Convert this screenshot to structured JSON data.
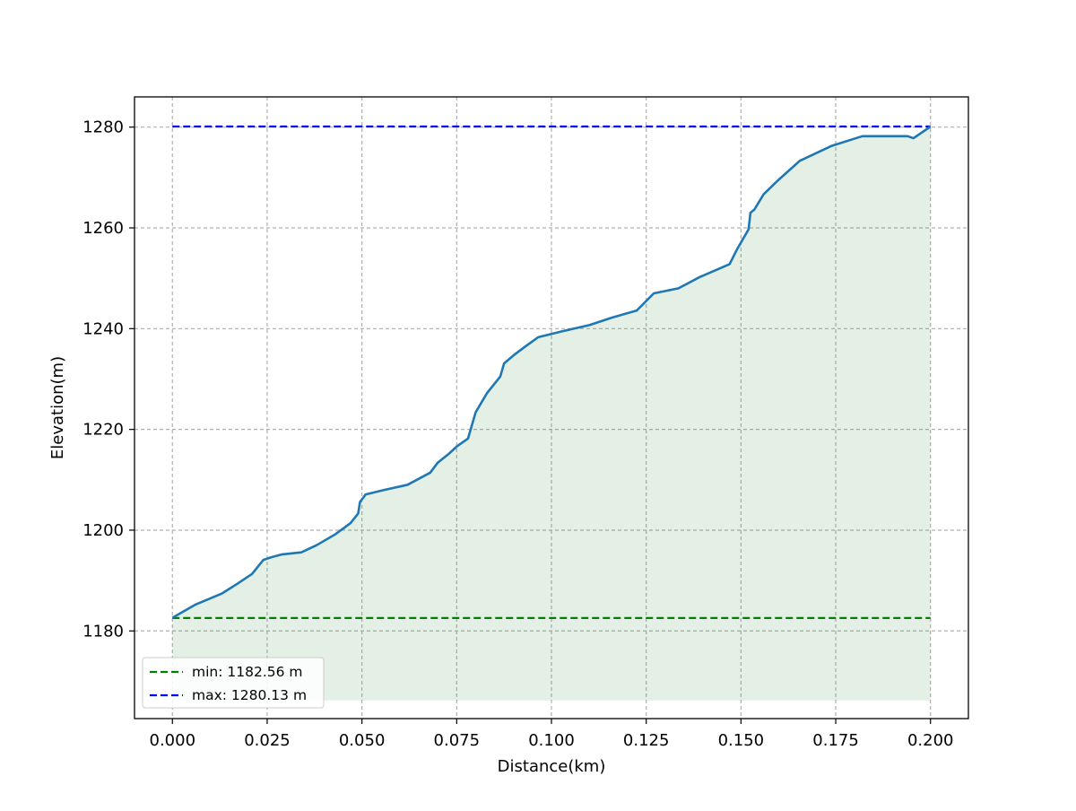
{
  "chart_data": {
    "type": "area",
    "title": "",
    "xlabel": "Distance(km)",
    "ylabel": "Elevation(m)",
    "xlim": [
      -0.01,
      0.21
    ],
    "ylim": [
      1162.6,
      1286.0
    ],
    "xticks": [
      0.0,
      0.025,
      0.05,
      0.075,
      0.1,
      0.125,
      0.15,
      0.175,
      0.2
    ],
    "xtick_labels": [
      "0.000",
      "0.025",
      "0.050",
      "0.075",
      "0.100",
      "0.125",
      "0.150",
      "0.175",
      "0.200"
    ],
    "yticks": [
      1180,
      1200,
      1220,
      1240,
      1260,
      1280
    ],
    "ytick_labels": [
      "1180",
      "1200",
      "1220",
      "1240",
      "1260",
      "1280"
    ],
    "grid": true,
    "fill_baseline": 1166.2,
    "legend_position": "lower-left",
    "series": [
      {
        "kind": "profile",
        "color": "#1f77b4",
        "fill_color": "#2e8b3a",
        "x": [
          0.0,
          0.006,
          0.013,
          0.017,
          0.021,
          0.024,
          0.026,
          0.029,
          0.034,
          0.038,
          0.043,
          0.047,
          0.049,
          0.0495,
          0.051,
          0.056,
          0.062,
          0.068,
          0.07,
          0.073,
          0.075,
          0.078,
          0.08,
          0.083,
          0.0865,
          0.0875,
          0.09,
          0.093,
          0.0965,
          0.103,
          0.11,
          0.116,
          0.1225,
          0.127,
          0.1335,
          0.139,
          0.147,
          0.149,
          0.152,
          0.1525,
          0.1535,
          0.156,
          0.16,
          0.1655,
          0.174,
          0.182,
          0.187,
          0.194,
          0.1955,
          0.2
        ],
        "y": [
          1182.6,
          1185.2,
          1187.4,
          1189.3,
          1191.3,
          1194.1,
          1194.6,
          1195.2,
          1195.6,
          1197.0,
          1199.2,
          1201.4,
          1203.3,
          1205.6,
          1207.1,
          1208.0,
          1209.0,
          1211.4,
          1213.4,
          1215.2,
          1216.6,
          1218.2,
          1223.4,
          1227.2,
          1230.5,
          1233.1,
          1234.7,
          1236.4,
          1238.3,
          1239.5,
          1240.7,
          1242.2,
          1243.6,
          1247.0,
          1248.0,
          1250.2,
          1252.8,
          1255.8,
          1259.7,
          1263.0,
          1263.6,
          1266.7,
          1269.6,
          1273.3,
          1276.3,
          1278.2,
          1278.2,
          1278.2,
          1277.8,
          1280.1
        ]
      },
      {
        "kind": "hline",
        "name": "min: 1182.56 m",
        "y": 1182.56,
        "x_range": [
          0.0,
          0.2
        ],
        "color": "#008000",
        "dash": "dashed"
      },
      {
        "kind": "hline",
        "name": "max: 1280.13 m",
        "y": 1280.13,
        "x_range": [
          0.0,
          0.2
        ],
        "color": "#0000ff",
        "dash": "dashed"
      }
    ]
  }
}
